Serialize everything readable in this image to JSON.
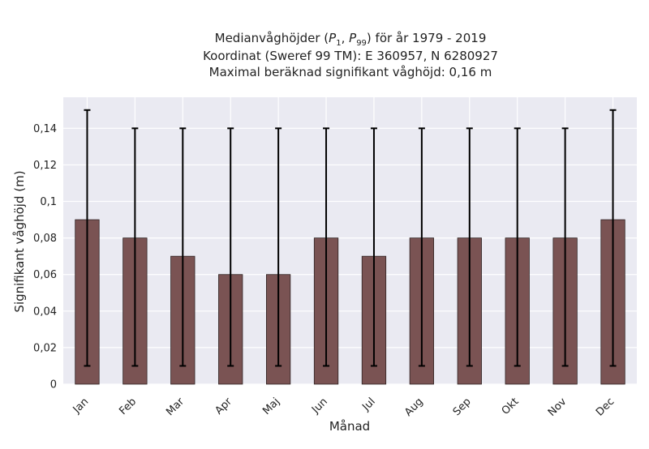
{
  "chart_data": {
    "type": "bar",
    "title": {
      "line1_prefix": "Medianvåghöjder (",
      "p_symbol": "P",
      "sub_1": "1",
      "sub_99": "99",
      "comma": ", ",
      "line1_suffix": ") för år 1979 - 2019",
      "line2": "Koordinat (Sweref 99 TM): E 360957, N 6280927",
      "line3": "Maximal beräknad signifikant våghöjd: 0,16 m"
    },
    "xlabel": "Månad",
    "ylabel": "Signifikant våghöjd (m)",
    "categories": [
      "Jan",
      "Feb",
      "Mar",
      "Apr",
      "Maj",
      "Jun",
      "Jul",
      "Aug",
      "Sep",
      "Okt",
      "Nov",
      "Dec"
    ],
    "values": [
      0.09,
      0.08,
      0.07,
      0.06,
      0.06,
      0.08,
      0.07,
      0.08,
      0.08,
      0.08,
      0.08,
      0.09
    ],
    "error_low": [
      0.01,
      0.01,
      0.01,
      0.01,
      0.01,
      0.01,
      0.01,
      0.01,
      0.01,
      0.01,
      0.01,
      0.01
    ],
    "error_high": [
      0.15,
      0.14,
      0.14,
      0.14,
      0.14,
      0.14,
      0.14,
      0.14,
      0.14,
      0.14,
      0.14,
      0.15
    ],
    "ylim": [
      0,
      0.157
    ],
    "yticks": [
      0,
      0.02,
      0.04,
      0.06,
      0.08,
      0.1,
      0.12,
      0.14
    ],
    "ytick_labels": [
      "0",
      "0,02",
      "0,04",
      "0,06",
      "0,08",
      "0,1",
      "0,12",
      "0,14"
    ],
    "grid": true,
    "colors": {
      "bar": "#7a5353",
      "bar_edge": "#2e2222",
      "errorbar": "#000000",
      "plot_background": "#eaeaf2",
      "grid": "#ffffff"
    }
  }
}
